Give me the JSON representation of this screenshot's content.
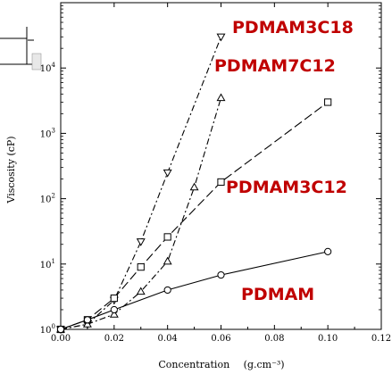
{
  "chart_data": {
    "type": "line",
    "xlabel": "Concentration",
    "xunit": "(g.cm⁻³)",
    "ylabel": "Viscosity (cP)",
    "xlim": [
      0,
      0.12
    ],
    "ylim": [
      1,
      100000
    ],
    "yscale": "log",
    "x_ticks": [
      "0.00",
      "0.02",
      "0.04",
      "0.06",
      "0.08",
      "0.10",
      "0.12"
    ],
    "y_ticks": [
      {
        "base": "10",
        "exp": "0"
      },
      {
        "base": "10",
        "exp": "1"
      },
      {
        "base": "10",
        "exp": "2"
      },
      {
        "base": "10",
        "exp": "3"
      },
      {
        "base": "10",
        "exp": "4"
      }
    ],
    "label_color": "#c00000",
    "series": [
      {
        "name": "PDMAM3C18",
        "marker": "triangle-down",
        "x": [
          0,
          0.01,
          0.02,
          0.03,
          0.04,
          0.06
        ],
        "y": [
          1.0,
          1.2,
          2.8,
          22,
          250,
          30000
        ]
      },
      {
        "name": "PDMAM7C12",
        "marker": "triangle-up",
        "x": [
          0,
          0.01,
          0.02,
          0.03,
          0.04,
          0.05,
          0.06
        ],
        "y": [
          1.0,
          1.2,
          1.7,
          3.8,
          11,
          150,
          3500
        ]
      },
      {
        "name": "PDMAM3C12",
        "marker": "square",
        "x": [
          0,
          0.01,
          0.02,
          0.03,
          0.04,
          0.06,
          0.1
        ],
        "y": [
          1.0,
          1.4,
          3.0,
          9,
          26,
          180,
          3000
        ]
      },
      {
        "name": "PDMAM",
        "marker": "circle",
        "x": [
          0,
          0.01,
          0.02,
          0.04,
          0.06,
          0.1
        ],
        "y": [
          1.0,
          1.4,
          2.0,
          4.0,
          6.8,
          15.5
        ]
      }
    ]
  }
}
